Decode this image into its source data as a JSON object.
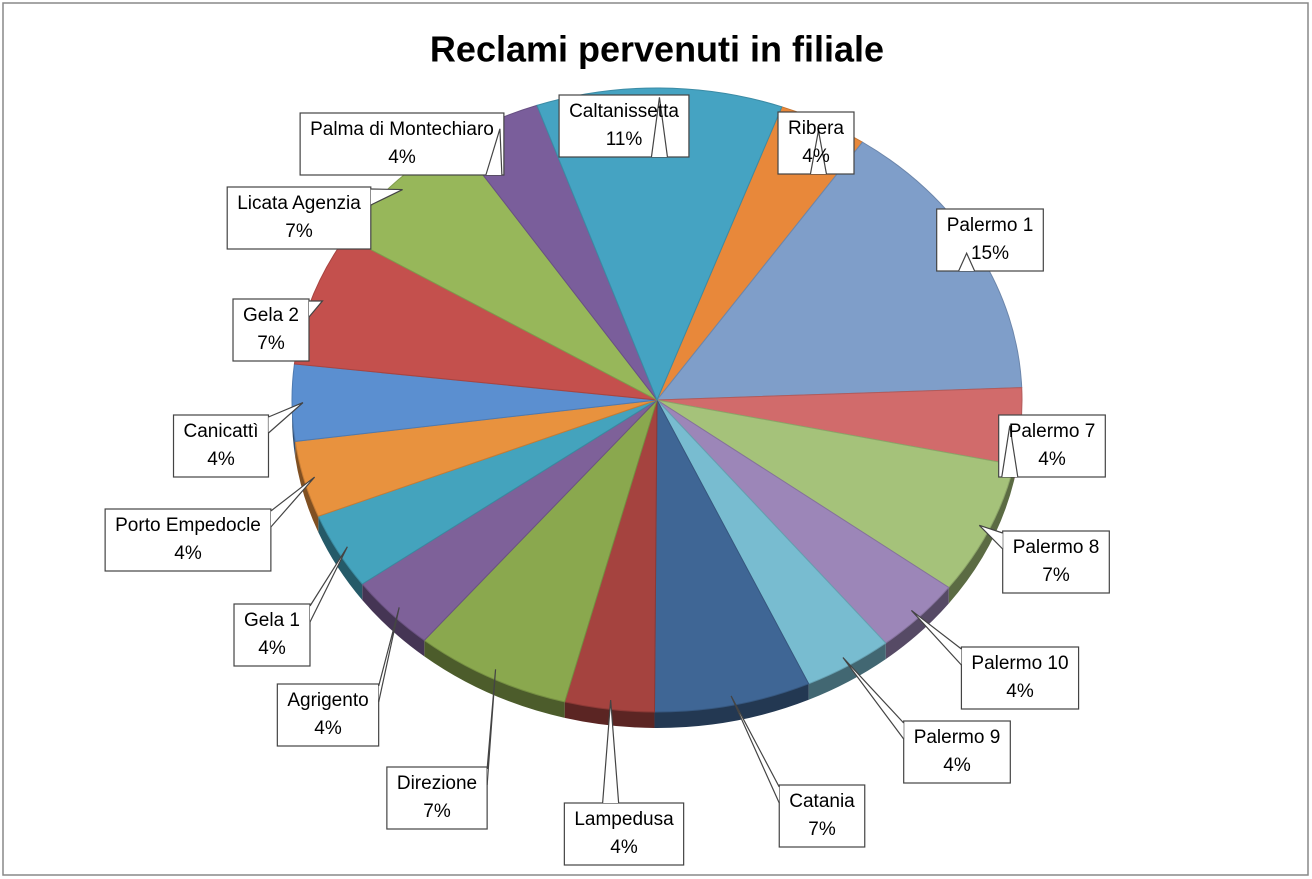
{
  "chart_data": {
    "type": "pie",
    "title": "Reclami pervenuti in filiale",
    "categories": [
      "Ribera",
      "Palermo 1",
      "Palermo 7",
      "Palermo 8",
      "Palermo 10",
      "Palermo 9",
      "Catania",
      "Lampedusa",
      "Direzione",
      "Agrigento",
      "Gela 1",
      "Porto Empedocle",
      "Canicattì",
      "Gela 2",
      "Licata Agenzia",
      "Palma di Montechiaro",
      "Caltanissetta"
    ],
    "values": [
      4,
      15,
      4,
      7,
      4,
      4,
      7,
      4,
      7,
      4,
      4,
      4,
      4,
      7,
      7,
      4,
      11
    ],
    "value_labels": [
      "4%",
      "15%",
      "4%",
      "7%",
      "4%",
      "4%",
      "7%",
      "4%",
      "7%",
      "4%",
      "4%",
      "4%",
      "4%",
      "7%",
      "7%",
      "4%",
      "11%"
    ],
    "colors": [
      "#e8883a",
      "#7f9ec9",
      "#d16b6b",
      "#a5c27a",
      "#9c86b8",
      "#78bcd0",
      "#3f6695",
      "#a5433f",
      "#8aa84e",
      "#7e6199",
      "#44a3bd",
      "#e8923e",
      "#5b8fd0",
      "#c4504d",
      "#97b75a",
      "#7a5e9b",
      "#45a3c2"
    ]
  }
}
